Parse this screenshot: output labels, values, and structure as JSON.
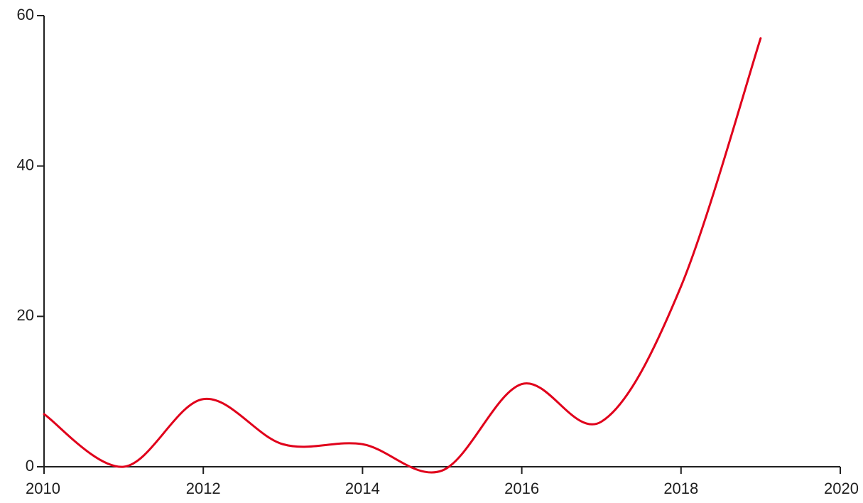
{
  "chart_data": {
    "type": "line",
    "title": "",
    "xlabel": "",
    "ylabel": "",
    "x": [
      2010,
      2011,
      2012,
      2013,
      2014,
      2015,
      2016,
      2017,
      2018,
      2019
    ],
    "series": [
      {
        "values": [
          7,
          0,
          9,
          3,
          3,
          -0.5,
          11,
          6,
          24,
          57
        ],
        "color": "#e0001b"
      }
    ],
    "xlim": [
      2010,
      2020
    ],
    "ylim": [
      0,
      60
    ],
    "x_ticks": [
      2010,
      2012,
      2014,
      2016,
      2018,
      2020
    ],
    "y_ticks": [
      0,
      20,
      40,
      60
    ],
    "x_tick_labels": [
      "2010",
      "2012",
      "2014",
      "2016",
      "2018",
      "2020"
    ],
    "y_tick_labels": [
      "0",
      "20",
      "40",
      "60"
    ],
    "grid": false,
    "legend": "none",
    "curve": "smooth"
  }
}
